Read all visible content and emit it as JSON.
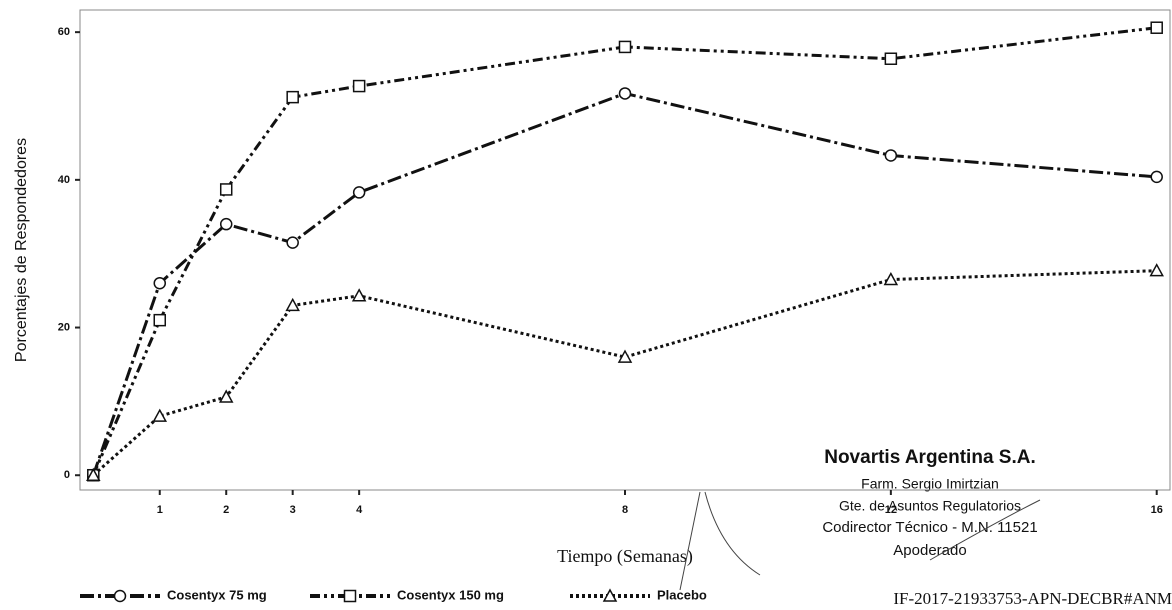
{
  "chart_data": {
    "type": "line",
    "x_label": "Tiempo (Semanas)",
    "y_label": "Porcentajes de Respondedores",
    "x": [
      0,
      1,
      2,
      3,
      4,
      8,
      12,
      16
    ],
    "series": [
      {
        "name": "Cosentyx 75 mg",
        "color": "#111111",
        "marker": "circle",
        "linestyle": "dashdot",
        "values": [
          0,
          26,
          34,
          31.5,
          38.3,
          51.7,
          43.3,
          40.4
        ]
      },
      {
        "name": "Cosentyx 150 mg",
        "color": "#111111",
        "marker": "square",
        "linestyle": "dashdotdot",
        "values": [
          0,
          21,
          38.7,
          51.2,
          52.7,
          58,
          56.4,
          60.6
        ]
      },
      {
        "name": "Placebo",
        "color": "#111111",
        "marker": "triangle",
        "linestyle": "dotted",
        "values": [
          0,
          8,
          10.6,
          23,
          24.3,
          16,
          26.5,
          27.7
        ]
      }
    ],
    "xlim": [
      -0.2,
      16.2
    ],
    "xticks": [
      1,
      2,
      3,
      4,
      8,
      12,
      16
    ],
    "ylim": [
      -2,
      63
    ],
    "yticks": [
      0,
      20,
      40,
      60
    ],
    "legend": "bottom",
    "annotations": [
      "Novartis Argentina S.A.",
      "Farm. Sergio Imirtzian",
      "Gte. de Asuntos Regulatorios",
      "Codirector Técnico - M.N. 11521",
      "Apoderado",
      "IF-2017-21933753-APN-DECBR#ANM"
    ]
  }
}
